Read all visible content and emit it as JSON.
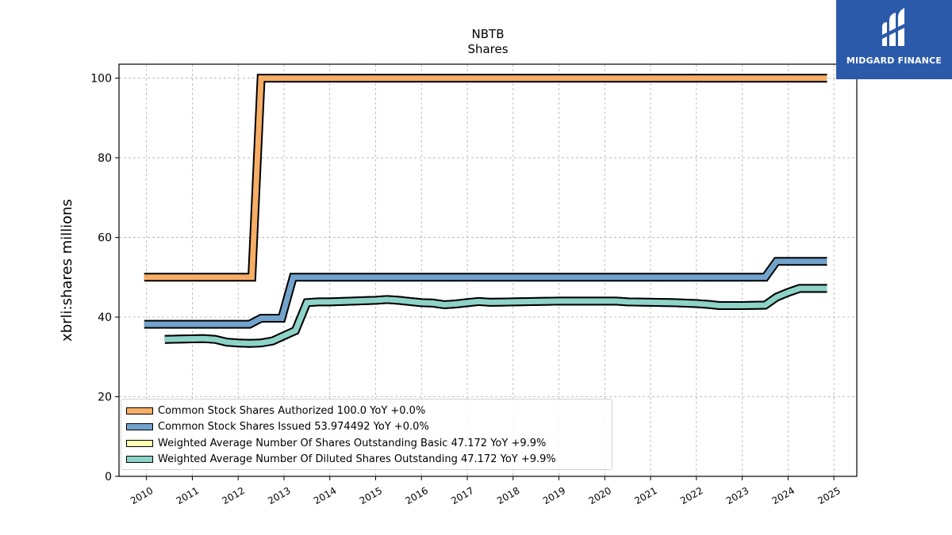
{
  "logo": {
    "text": "MIDGARD FINANCE",
    "bg_color": "#2b5aaa"
  },
  "chart_data": {
    "type": "line",
    "title": "NBTB",
    "subtitle": "Shares",
    "xlabel": "",
    "ylabel": "xbrli:shares millions",
    "ylim": [
      0,
      103.5
    ],
    "xlim": [
      2009.4,
      2025.5
    ],
    "yticks": [
      0,
      20,
      40,
      60,
      80,
      100
    ],
    "xticks": [
      "2010",
      "2011",
      "2012",
      "2013",
      "2014",
      "2015",
      "2016",
      "2017",
      "2018",
      "2019",
      "2020",
      "2021",
      "2022",
      "2023",
      "2024",
      "2025"
    ],
    "grid": true,
    "legend_position": "lower-left",
    "series": [
      {
        "name": "Common Stock Shares Authorized",
        "legend": "Common Stock Shares Authorized  100.0 YoY +0.0%",
        "color": "#f6ad66",
        "x": [
          2009.95,
          2012.3,
          2012.5,
          2024.85
        ],
        "y": [
          50.0,
          50.0,
          100.0,
          100.0
        ]
      },
      {
        "name": "Common Stock Shares Issued",
        "legend": "Common Stock Shares Issued  53.974492 YoY +0.0%",
        "color": "#72a3cc",
        "x": [
          2009.95,
          2012.25,
          2012.5,
          2012.95,
          2013.2,
          2023.5,
          2023.75,
          2024.85
        ],
        "y": [
          38.2,
          38.2,
          39.7,
          39.7,
          50.0,
          50.0,
          54.0,
          54.0
        ]
      },
      {
        "name": "Weighted Average Number Of Shares Outstanding Basic",
        "legend": "Weighted Average Number Of Shares Outstanding Basic  47.172 YoY +9.9%",
        "color": "#ffffb3",
        "x": [
          2010.4,
          2010.75,
          2011.25,
          2011.5,
          2011.75,
          2012.0,
          2012.25,
          2012.5,
          2012.75,
          2013.0,
          2013.25,
          2013.5,
          2013.75,
          2014.0,
          2014.5,
          2015.0,
          2015.25,
          2015.5,
          2016.0,
          2016.25,
          2016.5,
          2016.75,
          2017.0,
          2017.25,
          2017.5,
          2018.0,
          2018.5,
          2019.0,
          2019.5,
          2020.0,
          2020.25,
          2020.5,
          2021.0,
          2021.5,
          2022.0,
          2022.25,
          2022.5,
          2023.0,
          2023.5,
          2023.75,
          2024.0,
          2024.25,
          2024.85
        ],
        "y": [
          34.4,
          34.5,
          34.6,
          34.4,
          33.7,
          33.5,
          33.4,
          33.5,
          34.0,
          35.3,
          36.6,
          43.6,
          43.8,
          43.8,
          44.0,
          44.2,
          44.4,
          44.2,
          43.6,
          43.5,
          43.1,
          43.3,
          43.6,
          43.9,
          43.7,
          43.8,
          43.9,
          44.0,
          44.0,
          44.0,
          44.0,
          43.8,
          43.7,
          43.6,
          43.4,
          43.2,
          42.9,
          42.9,
          43.0,
          45.0,
          46.2,
          47.2,
          47.2
        ]
      },
      {
        "name": "Weighted Average Number Of Diluted Shares Outstanding",
        "legend": "Weighted Average Number Of Diluted Shares Outstanding  47.172 YoY +9.9%",
        "color": "#8dd3c7",
        "x": [
          2010.4,
          2010.75,
          2011.25,
          2011.5,
          2011.75,
          2012.0,
          2012.25,
          2012.5,
          2012.75,
          2013.0,
          2013.25,
          2013.5,
          2013.75,
          2014.0,
          2014.5,
          2015.0,
          2015.25,
          2015.5,
          2016.0,
          2016.25,
          2016.5,
          2016.75,
          2017.0,
          2017.25,
          2017.5,
          2018.0,
          2018.5,
          2019.0,
          2019.5,
          2020.0,
          2020.25,
          2020.5,
          2021.0,
          2021.5,
          2022.0,
          2022.25,
          2022.5,
          2023.0,
          2023.5,
          2023.75,
          2024.0,
          2024.25,
          2024.85
        ],
        "y": [
          34.4,
          34.5,
          34.6,
          34.4,
          33.7,
          33.5,
          33.4,
          33.5,
          34.0,
          35.3,
          36.6,
          43.6,
          43.8,
          43.8,
          44.0,
          44.2,
          44.4,
          44.2,
          43.6,
          43.5,
          43.1,
          43.3,
          43.6,
          43.9,
          43.7,
          43.8,
          43.9,
          44.0,
          44.0,
          44.0,
          44.0,
          43.8,
          43.7,
          43.6,
          43.4,
          43.2,
          42.9,
          42.9,
          43.0,
          45.0,
          46.2,
          47.2,
          47.2
        ]
      }
    ]
  }
}
